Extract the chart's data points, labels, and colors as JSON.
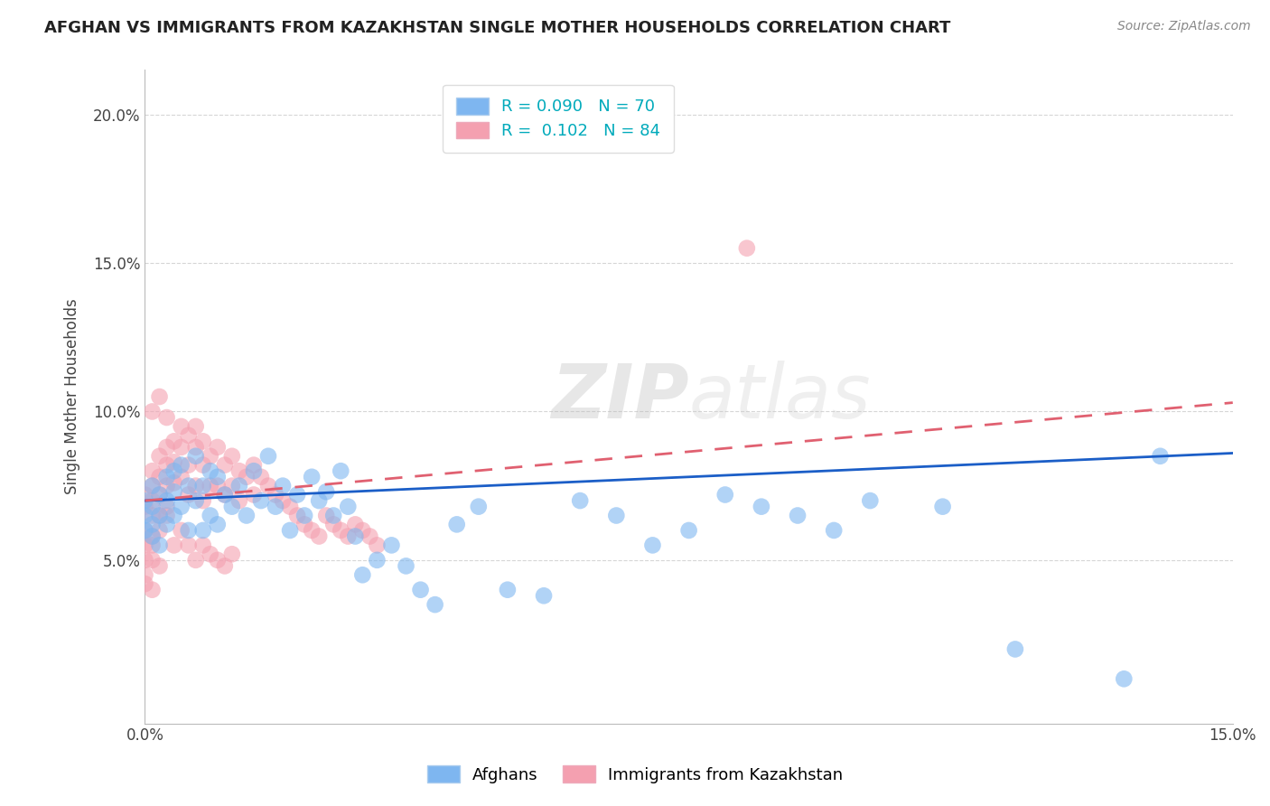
{
  "title": "AFGHAN VS IMMIGRANTS FROM KAZAKHSTAN SINGLE MOTHER HOUSEHOLDS CORRELATION CHART",
  "source": "Source: ZipAtlas.com",
  "ylabel_label": "Single Mother Households",
  "xmin": 0.0,
  "xmax": 0.15,
  "ymin": -0.005,
  "ymax": 0.215,
  "legend_afghan_R": 0.09,
  "legend_afghan_N": 70,
  "legend_kazakh_R": 0.102,
  "legend_kazakh_N": 84,
  "afghan_color": "#7EB6F0",
  "kazakh_color": "#F4A0B0",
  "afghan_line_color": "#1B5EC7",
  "kazakh_line_color": "#E06070",
  "background_color": "#FFFFFF",
  "afghan_trend_x": [
    0.0,
    0.15
  ],
  "afghan_trend_y": [
    0.07,
    0.086
  ],
  "kazakh_trend_x": [
    0.0,
    0.15
  ],
  "kazakh_trend_y": [
    0.07,
    0.103
  ],
  "afghan_scatter_x": [
    0.0,
    0.0,
    0.0,
    0.001,
    0.001,
    0.001,
    0.001,
    0.002,
    0.002,
    0.002,
    0.003,
    0.003,
    0.003,
    0.004,
    0.004,
    0.004,
    0.005,
    0.005,
    0.006,
    0.006,
    0.007,
    0.007,
    0.008,
    0.008,
    0.009,
    0.009,
    0.01,
    0.01,
    0.011,
    0.012,
    0.013,
    0.014,
    0.015,
    0.016,
    0.017,
    0.018,
    0.019,
    0.02,
    0.021,
    0.022,
    0.023,
    0.024,
    0.025,
    0.026,
    0.027,
    0.028,
    0.029,
    0.03,
    0.032,
    0.034,
    0.036,
    0.038,
    0.04,
    0.043,
    0.046,
    0.05,
    0.055,
    0.06,
    0.065,
    0.07,
    0.075,
    0.08,
    0.085,
    0.09,
    0.095,
    0.1,
    0.11,
    0.12,
    0.135,
    0.14
  ],
  "afghan_scatter_y": [
    0.07,
    0.065,
    0.06,
    0.075,
    0.068,
    0.062,
    0.058,
    0.072,
    0.065,
    0.055,
    0.078,
    0.07,
    0.062,
    0.08,
    0.073,
    0.065,
    0.082,
    0.068,
    0.075,
    0.06,
    0.085,
    0.07,
    0.075,
    0.06,
    0.08,
    0.065,
    0.078,
    0.062,
    0.072,
    0.068,
    0.075,
    0.065,
    0.08,
    0.07,
    0.085,
    0.068,
    0.075,
    0.06,
    0.072,
    0.065,
    0.078,
    0.07,
    0.073,
    0.065,
    0.08,
    0.068,
    0.058,
    0.045,
    0.05,
    0.055,
    0.048,
    0.04,
    0.035,
    0.062,
    0.068,
    0.04,
    0.038,
    0.07,
    0.065,
    0.055,
    0.06,
    0.072,
    0.068,
    0.065,
    0.06,
    0.07,
    0.068,
    0.02,
    0.01,
    0.085
  ],
  "kazakh_scatter_x": [
    0.0,
    0.0,
    0.0,
    0.0,
    0.001,
    0.001,
    0.001,
    0.001,
    0.001,
    0.002,
    0.002,
    0.002,
    0.002,
    0.003,
    0.003,
    0.003,
    0.003,
    0.004,
    0.004,
    0.004,
    0.005,
    0.005,
    0.005,
    0.006,
    0.006,
    0.006,
    0.007,
    0.007,
    0.007,
    0.008,
    0.008,
    0.008,
    0.009,
    0.009,
    0.01,
    0.01,
    0.011,
    0.011,
    0.012,
    0.012,
    0.013,
    0.013,
    0.014,
    0.015,
    0.015,
    0.016,
    0.017,
    0.018,
    0.019,
    0.02,
    0.021,
    0.022,
    0.023,
    0.024,
    0.025,
    0.026,
    0.027,
    0.028,
    0.029,
    0.03,
    0.031,
    0.032,
    0.0,
    0.001,
    0.002,
    0.003,
    0.004,
    0.005,
    0.006,
    0.007,
    0.008,
    0.009,
    0.01,
    0.011,
    0.012,
    0.083,
    0.001,
    0.002,
    0.003,
    0.0,
    0.001,
    0.002,
    0.0,
    0.001
  ],
  "kazakh_scatter_y": [
    0.072,
    0.068,
    0.06,
    0.055,
    0.08,
    0.075,
    0.07,
    0.065,
    0.058,
    0.085,
    0.078,
    0.072,
    0.065,
    0.088,
    0.082,
    0.075,
    0.068,
    0.09,
    0.083,
    0.076,
    0.095,
    0.088,
    0.078,
    0.092,
    0.082,
    0.072,
    0.095,
    0.088,
    0.075,
    0.09,
    0.082,
    0.07,
    0.085,
    0.075,
    0.088,
    0.075,
    0.082,
    0.072,
    0.085,
    0.075,
    0.08,
    0.07,
    0.078,
    0.082,
    0.072,
    0.078,
    0.075,
    0.072,
    0.07,
    0.068,
    0.065,
    0.062,
    0.06,
    0.058,
    0.065,
    0.062,
    0.06,
    0.058,
    0.062,
    0.06,
    0.058,
    0.055,
    0.05,
    0.055,
    0.06,
    0.065,
    0.055,
    0.06,
    0.055,
    0.05,
    0.055,
    0.052,
    0.05,
    0.048,
    0.052,
    0.155,
    0.1,
    0.105,
    0.098,
    0.045,
    0.05,
    0.048,
    0.042,
    0.04
  ]
}
